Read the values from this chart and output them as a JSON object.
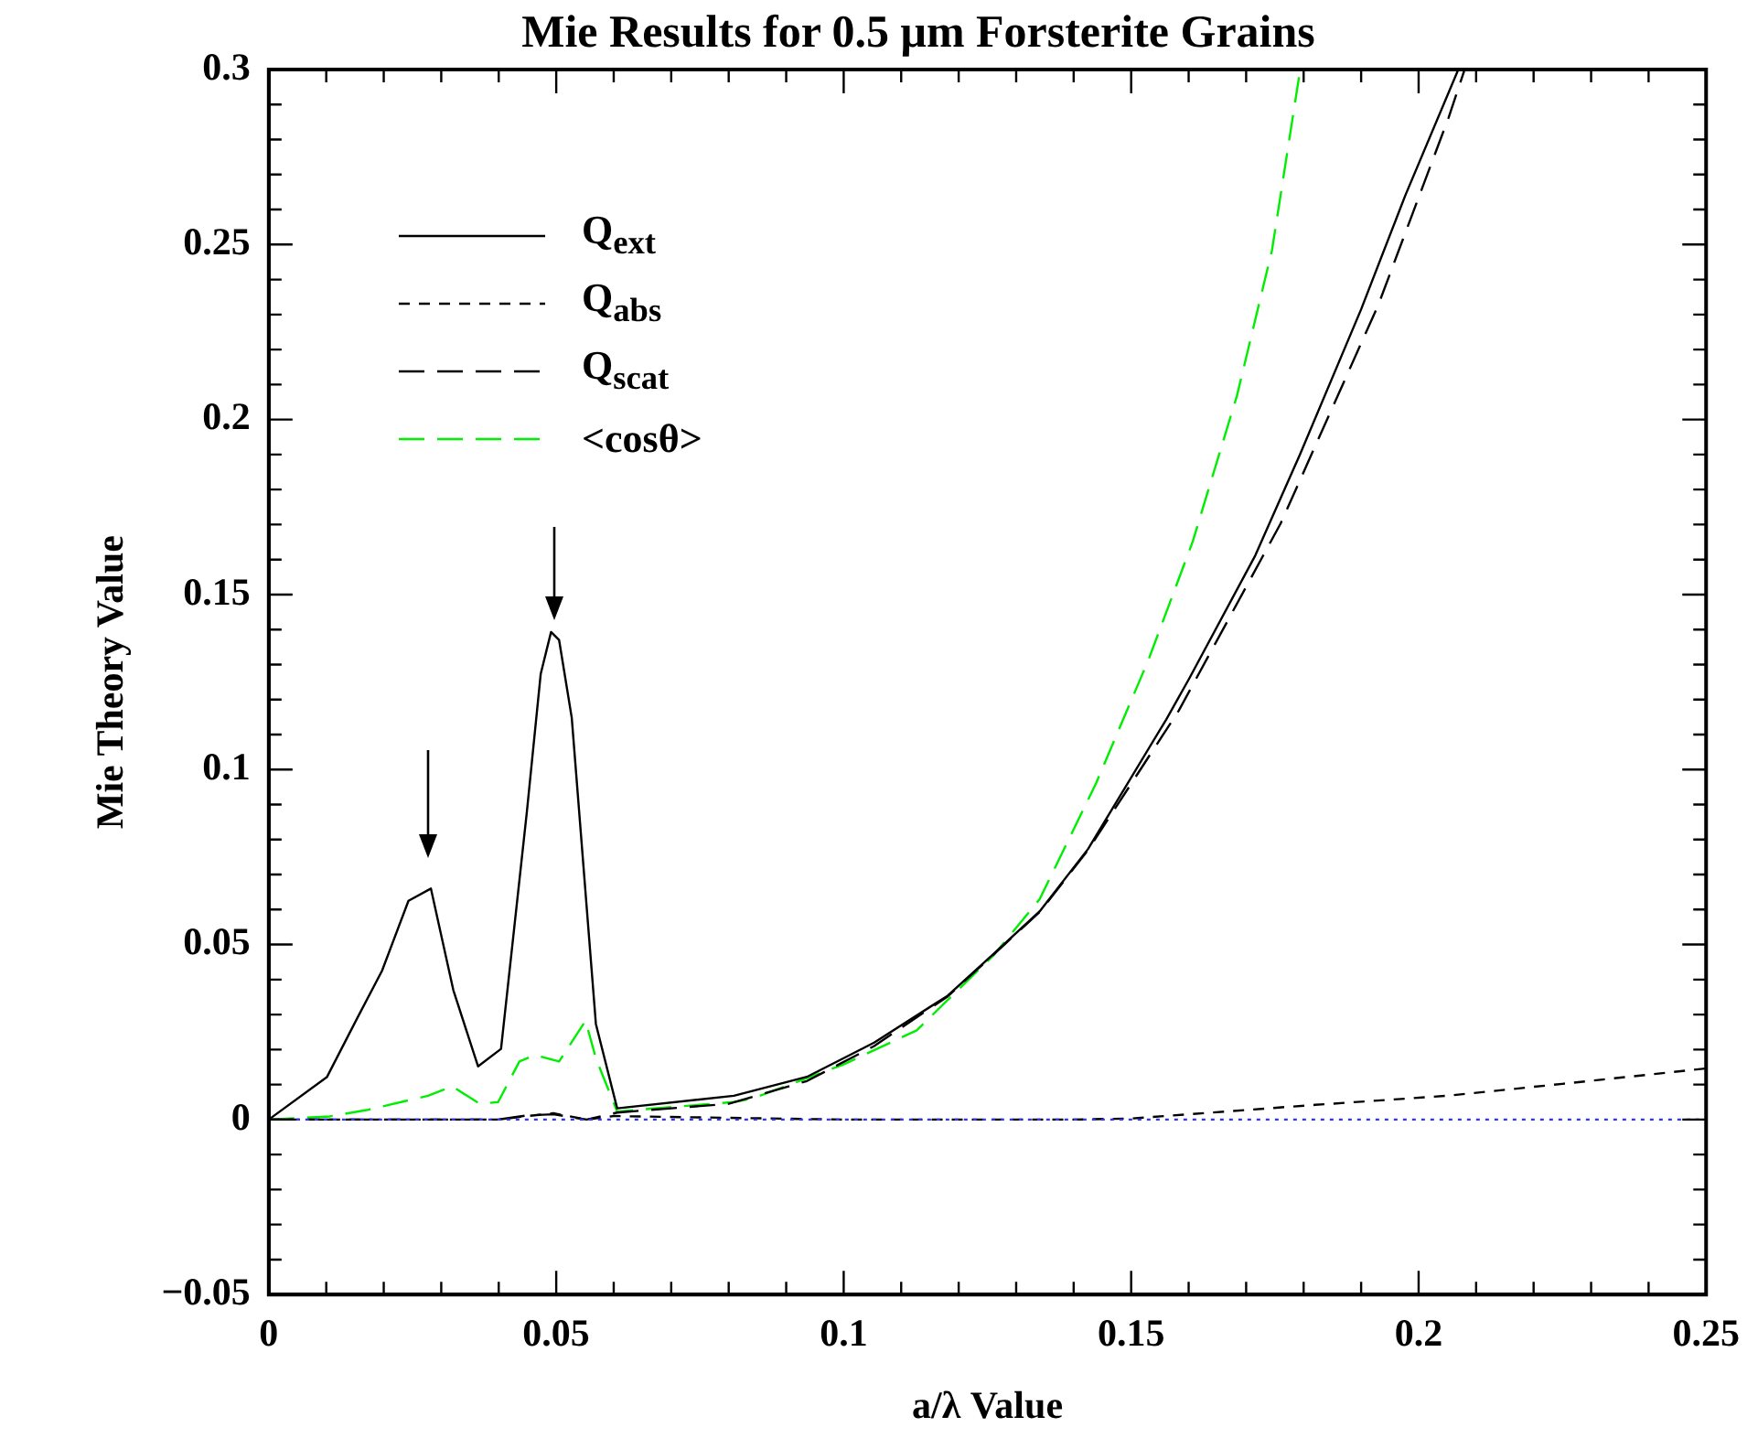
{
  "chart_data": {
    "type": "line",
    "title": "Mie Results for 0.5 μm Forsterite Grains",
    "xlabel": "a/λ Value",
    "ylabel": "Mie Theory Value",
    "xlim": [
      0,
      0.25
    ],
    "ylim": [
      -0.05,
      0.3
    ],
    "xticks": [
      0,
      {
        "value": 0.01,
        "label": null
      },
      {
        "value": 0.02,
        "label": null
      },
      {
        "value": 0.03,
        "label": null
      },
      {
        "value": 0.04,
        "label": null
      },
      0.05,
      {
        "value": 0.06,
        "label": null
      },
      {
        "value": 0.07,
        "label": null
      },
      {
        "value": 0.08,
        "label": null
      },
      {
        "value": 0.09,
        "label": null
      },
      0.1,
      {
        "value": 0.11,
        "label": null
      },
      {
        "value": 0.12,
        "label": null
      },
      {
        "value": 0.13,
        "label": null
      },
      {
        "value": 0.14,
        "label": null
      },
      0.15,
      {
        "value": 0.16,
        "label": null
      },
      {
        "value": 0.17,
        "label": null
      },
      {
        "value": 0.18,
        "label": null
      },
      {
        "value": 0.19,
        "label": null
      },
      0.2,
      {
        "value": 0.21,
        "label": null
      },
      {
        "value": 0.22,
        "label": null
      },
      {
        "value": 0.23,
        "label": null
      },
      {
        "value": 0.24,
        "label": null
      },
      0.25
    ],
    "yticks": [
      {
        "value": -0.05,
        "label": "−0.05"
      },
      {
        "value": -0.04,
        "label": null
      },
      {
        "value": -0.03,
        "label": null
      },
      {
        "value": -0.02,
        "label": null
      },
      {
        "value": -0.01,
        "label": null
      },
      0,
      {
        "value": 0.01,
        "label": null
      },
      {
        "value": 0.02,
        "label": null
      },
      {
        "value": 0.03,
        "label": null
      },
      {
        "value": 0.04,
        "label": null
      },
      0.05,
      {
        "value": 0.06,
        "label": null
      },
      {
        "value": 0.07,
        "label": null
      },
      {
        "value": 0.08,
        "label": null
      },
      {
        "value": 0.09,
        "label": null
      },
      0.1,
      {
        "value": 0.11,
        "label": null
      },
      {
        "value": 0.12,
        "label": null
      },
      {
        "value": 0.13,
        "label": null
      },
      {
        "value": 0.14,
        "label": null
      },
      0.15,
      {
        "value": 0.16,
        "label": null
      },
      {
        "value": 0.17,
        "label": null
      },
      {
        "value": 0.18,
        "label": null
      },
      {
        "value": 0.19,
        "label": null
      },
      0.2,
      {
        "value": 0.21,
        "label": null
      },
      {
        "value": 0.22,
        "label": null
      },
      {
        "value": 0.23,
        "label": null
      },
      {
        "value": 0.24,
        "label": null
      },
      0.25,
      {
        "value": 0.26,
        "label": null
      },
      {
        "value": 0.27,
        "label": null
      },
      {
        "value": 0.28,
        "label": null
      },
      {
        "value": 0.29,
        "label": null
      },
      0.3
    ],
    "grid": false,
    "legend": "top left",
    "marker": "none",
    "ref_lines": [
      {
        "axis": "y",
        "value": 0,
        "color": "#3333ff",
        "line_style": "dotted"
      }
    ],
    "series": [
      {
        "name": "Q$_{ext}$",
        "color": "#000000",
        "line_style": "solid",
        "x": [
          0,
          0.0101,
          0.0154,
          0.0197,
          0.0243,
          0.0282,
          0.0321,
          0.0364,
          0.0404,
          0.0449,
          0.0473,
          0.0491,
          0.0505,
          0.0527,
          0.0569,
          0.0606,
          0.0809,
          0.0936,
          0.1053,
          0.1181,
          0.1261,
          0.1341,
          0.1425,
          0.1561,
          0.1601,
          0.1716,
          0.1793,
          0.19,
          0.1977,
          0.2069
        ],
        "values": [
          0,
          0.0121,
          0.029,
          0.0425,
          0.0625,
          0.066,
          0.037,
          0.0152,
          0.0202,
          0.088,
          0.1273,
          0.1393,
          0.137,
          0.1148,
          0.0273,
          0.0032,
          0.0068,
          0.0122,
          0.022,
          0.0354,
          0.0474,
          0.0595,
          0.0773,
          0.1143,
          0.126,
          0.1612,
          0.1898,
          0.2315,
          0.2641,
          0.3
        ]
      },
      {
        "name": "Q$_{abs}$",
        "color": "#000000",
        "line_style": "dashed",
        "x": [
          0,
          0.04,
          0.045,
          0.0495,
          0.0553,
          0.06,
          0.1,
          0.14,
          0.15,
          0.182,
          0.205,
          0.225,
          0.25
        ],
        "values": [
          0,
          0,
          0.001,
          0.0018,
          0,
          0.001,
          0,
          0,
          0.0003,
          0.0042,
          0.0068,
          0.0102,
          0.0146
        ]
      },
      {
        "name": "Q$_{scat}$",
        "color": "#000000",
        "line_style": "longdash",
        "x": [
          0,
          0.04,
          0.045,
          0.0495,
          0.0553,
          0.0606,
          0.08,
          0.0936,
          0.1053,
          0.1181,
          0.1261,
          0.1341,
          0.1425,
          0.1583,
          0.176,
          0.193,
          0.2052,
          0.208
        ],
        "values": [
          0,
          0,
          0.0012,
          0.0015,
          0,
          0.002,
          0.0045,
          0.011,
          0.021,
          0.0352,
          0.0472,
          0.0593,
          0.077,
          0.1169,
          0.1703,
          0.2328,
          0.2862,
          0.3
        ]
      },
      {
        "name": "<cosθ>",
        "color": "#00ee00",
        "line_style": "longdash",
        "x": [
          0,
          0.0106,
          0.017,
          0.0277,
          0.0319,
          0.0367,
          0.0399,
          0.0436,
          0.0463,
          0.0505,
          0.0551,
          0.0569,
          0.0606,
          0.0809,
          0.0841,
          0.0999,
          0.1127,
          0.1261,
          0.1341,
          0.1439,
          0.153,
          0.1607,
          0.1684,
          0.1745,
          0.1794
        ],
        "values": [
          0,
          0.0009,
          0.0027,
          0.0068,
          0.0095,
          0.0045,
          0.005,
          0.0166,
          0.0184,
          0.0166,
          0.0282,
          0.0175,
          0.0023,
          0.005,
          0.006,
          0.0157,
          0.0255,
          0.047,
          0.063,
          0.0961,
          0.1313,
          0.1651,
          0.2068,
          0.2484,
          0.3
        ]
      }
    ]
  }
}
